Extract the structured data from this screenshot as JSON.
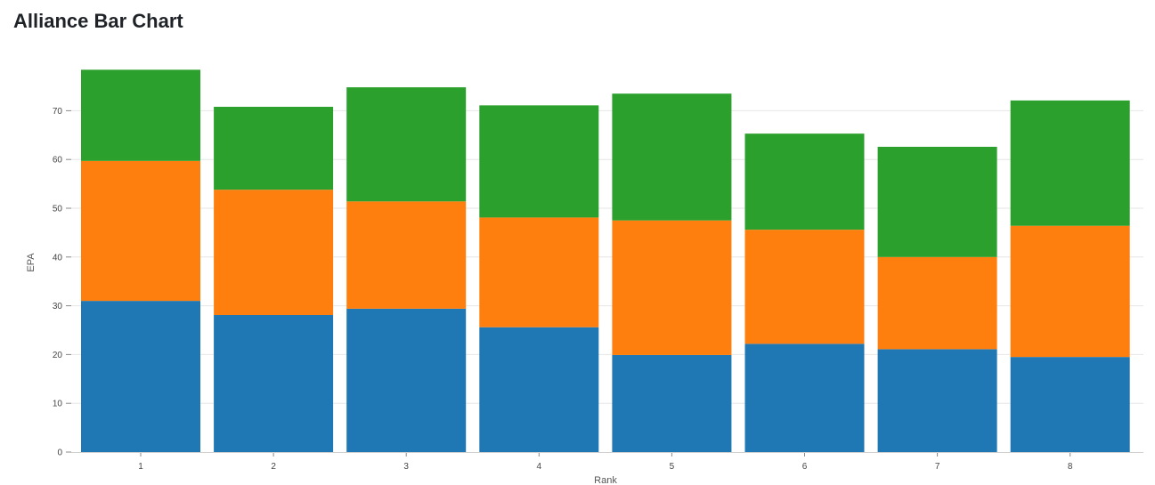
{
  "page": {
    "title": "Alliance Bar Chart"
  },
  "chart_data": {
    "type": "bar",
    "stacked": true,
    "categories": [
      "1",
      "2",
      "3",
      "4",
      "5",
      "6",
      "7",
      "8"
    ],
    "series": [
      {
        "color": "#1f77b4",
        "values": [
          31.0,
          28.1,
          29.4,
          25.6,
          19.9,
          22.2,
          21.1,
          19.5
        ]
      },
      {
        "color": "#ff7f0e",
        "values": [
          28.7,
          25.7,
          22.0,
          22.5,
          27.6,
          23.4,
          18.9,
          26.9
        ]
      },
      {
        "color": "#2ca02c",
        "values": [
          18.7,
          17.0,
          23.4,
          23.0,
          26.0,
          19.7,
          22.6,
          25.7
        ]
      }
    ],
    "xlabel": "Rank",
    "ylabel": "EPA",
    "ylim": [
      0,
      80
    ],
    "yticks": [
      0,
      10,
      20,
      30,
      40,
      50,
      60,
      70
    ],
    "grid": true,
    "legend": "none"
  }
}
